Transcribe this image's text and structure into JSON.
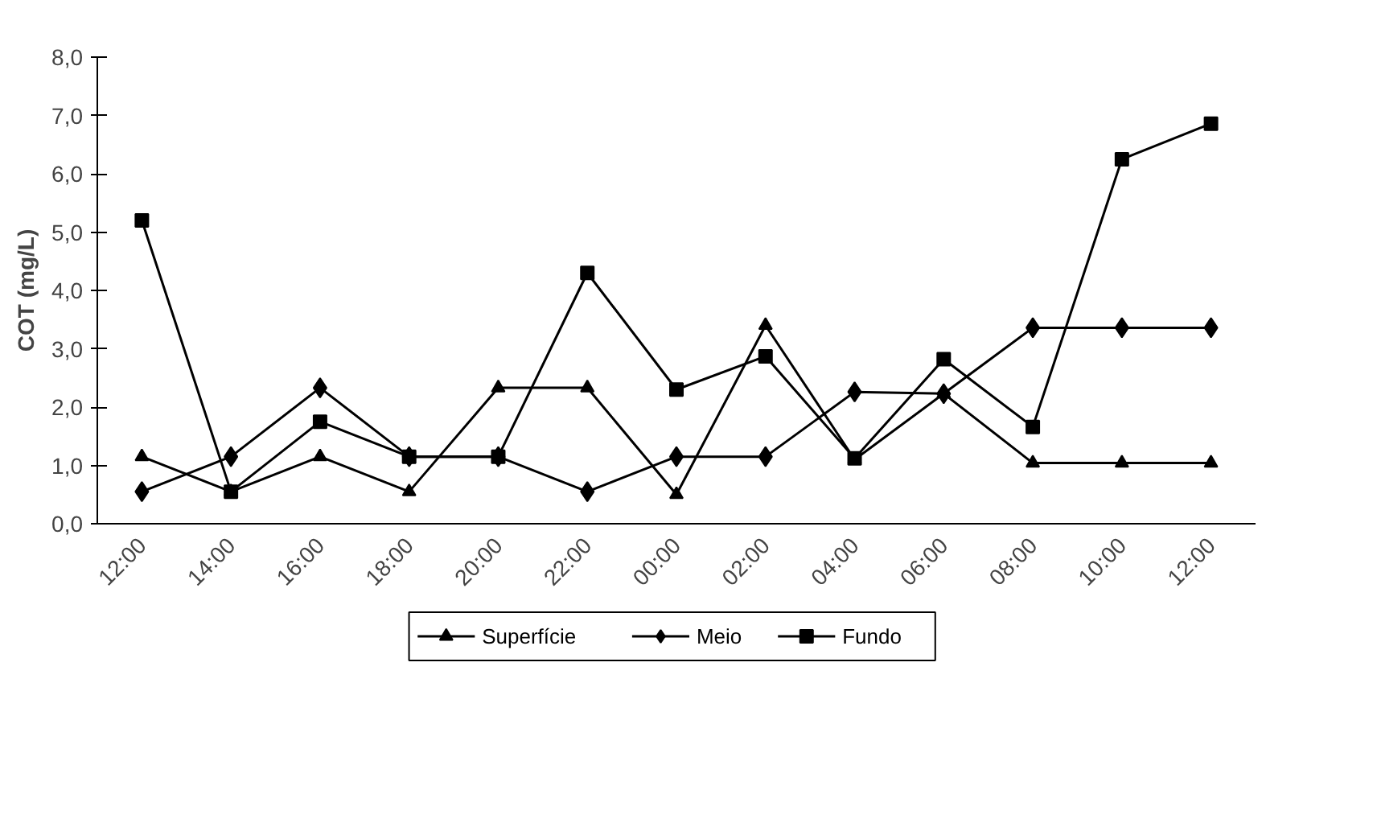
{
  "chart_data": {
    "type": "line",
    "ylabel": "COT (mg/L)",
    "categories": [
      "12:00",
      "14:00",
      "16:00",
      "18:00",
      "20:00",
      "22:00",
      "00:00",
      "02:00",
      "04:00",
      "06:00",
      "08:00",
      "10:00",
      "12:00"
    ],
    "series": [
      {
        "name": "Superfície",
        "color": "#000000",
        "marker": "triangle",
        "values": [
          1.15,
          0.55,
          1.15,
          0.55,
          2.33,
          2.33,
          0.5,
          3.4,
          1.1,
          2.23,
          1.04,
          1.04,
          1.04
        ]
      },
      {
        "name": "Meio",
        "color": "#000000",
        "marker": "diamond",
        "values": [
          0.55,
          1.15,
          2.33,
          1.15,
          1.15,
          0.55,
          1.15,
          1.15,
          2.26,
          2.23,
          3.36,
          3.36,
          3.36
        ]
      },
      {
        "name": "Fundo",
        "color": "#000000",
        "marker": "square",
        "values": [
          5.2,
          0.55,
          1.75,
          1.15,
          1.15,
          4.3,
          2.3,
          2.87,
          1.12,
          2.82,
          1.66,
          6.25,
          6.86
        ]
      }
    ],
    "ylim": [
      0,
      8
    ],
    "yticks": [
      {
        "value": 0,
        "label": "0,0"
      },
      {
        "value": 1,
        "label": "1,0"
      },
      {
        "value": 2,
        "label": "2,0"
      },
      {
        "value": 3,
        "label": "3,0"
      },
      {
        "value": 4,
        "label": "4,0"
      },
      {
        "value": 5,
        "label": "5,0"
      },
      {
        "value": 6,
        "label": "6,0"
      },
      {
        "value": 7,
        "label": "7,0"
      },
      {
        "value": 8,
        "label": "8,0"
      }
    ],
    "grid": false,
    "legend": "bottom",
    "line_style": "solid"
  }
}
